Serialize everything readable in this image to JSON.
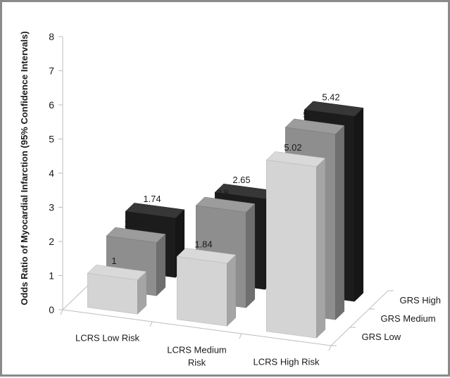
{
  "chart_data": {
    "type": "bar",
    "subtype": "3d-column",
    "title": "",
    "ylabel": "Odds Ratio of Myocardial Infarction (95% Confidence Intervals)",
    "ylim": [
      0,
      8
    ],
    "yticks": [
      "0",
      "1",
      "2",
      "3",
      "4",
      "5",
      "6",
      "7",
      "8"
    ],
    "categories": [
      "LCRS Low Risk",
      "LCRS Medium Risk",
      "LCRS High Risk"
    ],
    "category_lines": [
      [
        "LCRS Low Risk"
      ],
      [
        "LCRS Medium",
        "Risk"
      ],
      [
        "LCRS High Risk"
      ]
    ],
    "depth_categories": [
      "GRS Low",
      "GRS Medium",
      "GRS High"
    ],
    "series": [
      {
        "name": "GRS Low",
        "values": [
          1,
          1.84,
          5.02
        ],
        "labels": [
          "1",
          "1.84",
          "5.02"
        ],
        "color": "#d4d4d4"
      },
      {
        "name": "GRS Medium",
        "values": [
          1.56,
          2.8,
          5.44
        ],
        "labels": [
          "1.56",
          "2.8",
          "5.44"
        ],
        "color": "#8e8e8e"
      },
      {
        "name": "GRS High",
        "values": [
          1.74,
          2.65,
          5.42
        ],
        "labels": [
          "1.74",
          "2.65",
          "5.42"
        ],
        "color": "#1c1c1c"
      }
    ],
    "grid": false,
    "legend": "none"
  }
}
